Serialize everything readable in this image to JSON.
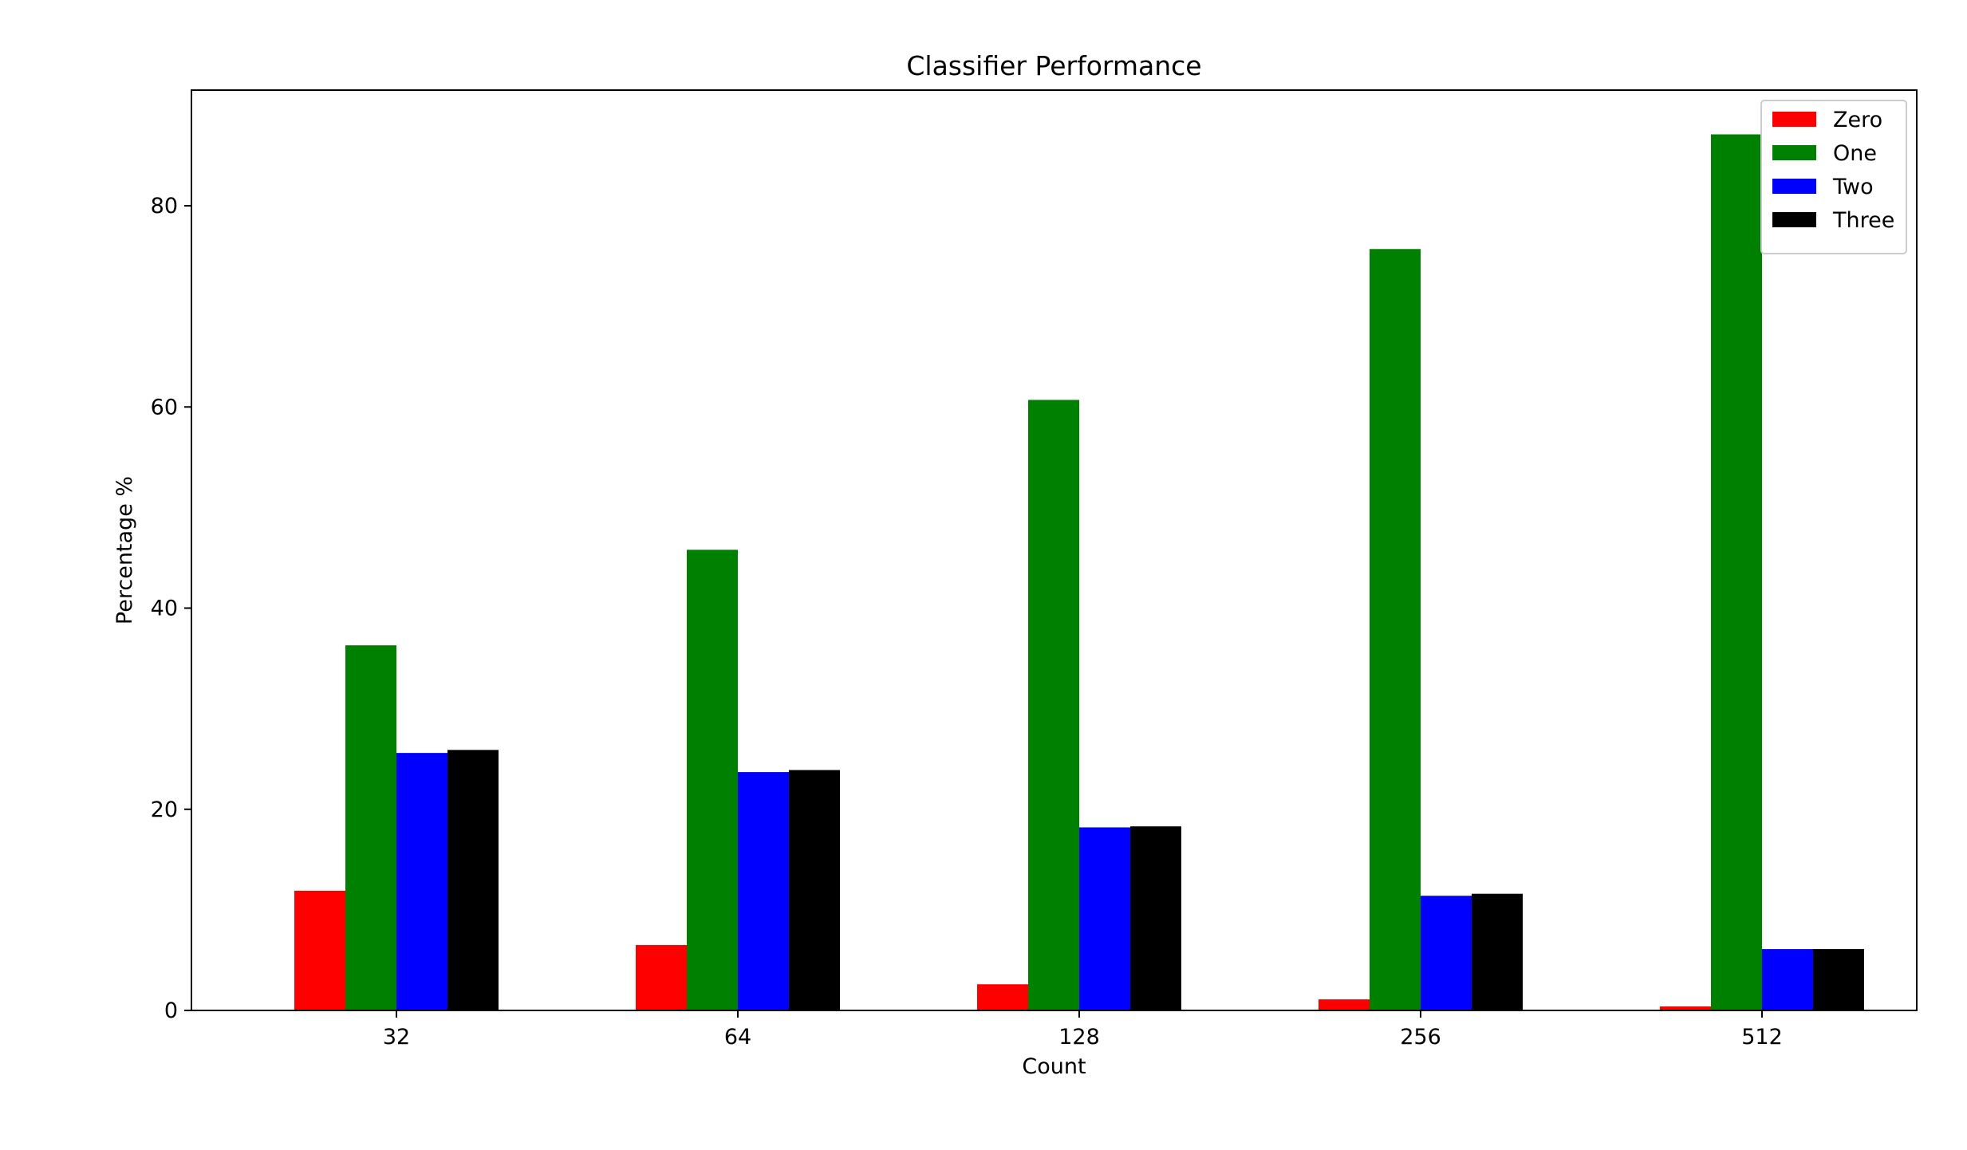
{
  "chart_data": {
    "type": "bar",
    "title": "Classifier Performance",
    "xlabel": "Count",
    "ylabel": "Percentage %",
    "categories": [
      "32",
      "64",
      "128",
      "256",
      "512"
    ],
    "series": [
      {
        "name": "Zero",
        "color": "#ff0000",
        "values": [
          11.9,
          6.5,
          2.6,
          1.1,
          0.4
        ]
      },
      {
        "name": "One",
        "color": "#008000",
        "values": [
          36.3,
          45.8,
          60.7,
          75.7,
          87.1
        ]
      },
      {
        "name": "Two",
        "color": "#0000ff",
        "values": [
          25.6,
          23.7,
          18.2,
          11.4,
          6.1
        ]
      },
      {
        "name": "Three",
        "color": "#000000",
        "values": [
          25.9,
          23.9,
          18.3,
          11.6,
          6.1
        ]
      }
    ],
    "ylim": [
      0,
      91.5
    ],
    "yticks": [
      "0",
      "20",
      "40",
      "60",
      "80"
    ],
    "grid": false,
    "legend_position": "top-right"
  }
}
